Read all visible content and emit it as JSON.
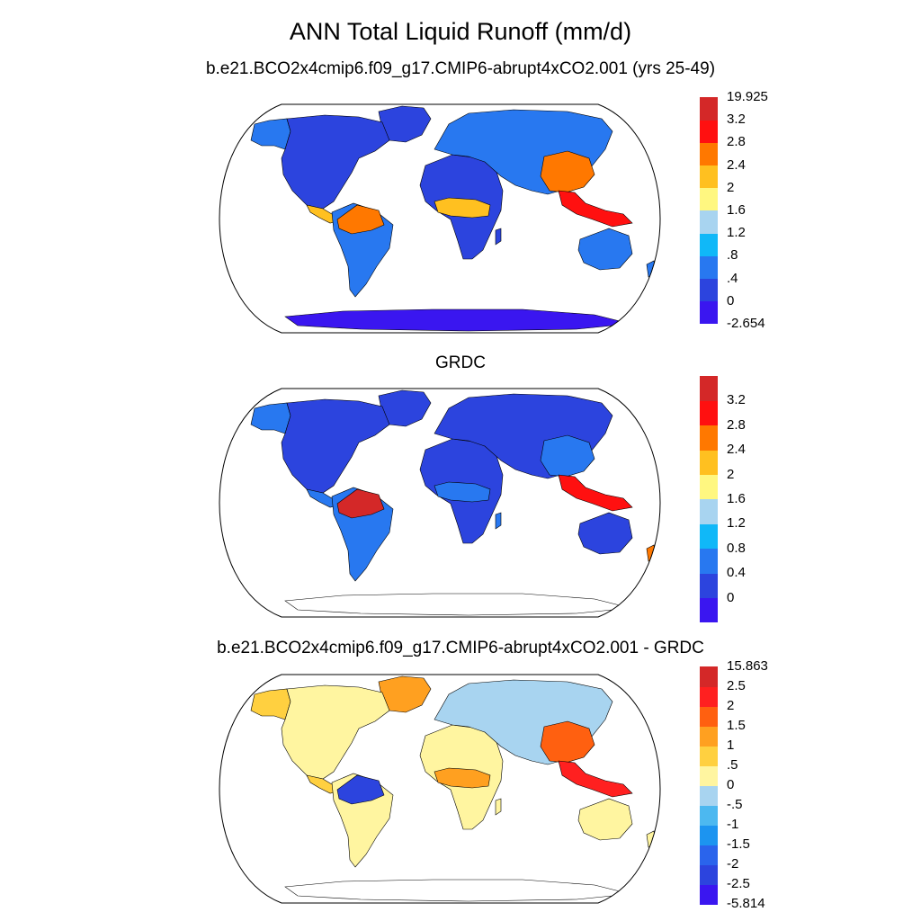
{
  "title": "ANN Total Liquid Runoff (mm/d)",
  "panels": [
    {
      "id": "model",
      "title": "b.e21.BCO2x4cmip6.f09_g17.CMIP6-abrupt4xCO2.001 (yrs 25-49)",
      "colorbar": {
        "colors": [
          "#3a16f0",
          "#2c44de",
          "#2878f0",
          "#10b8f8",
          "#a8d4f0",
          "#fff780",
          "#ffc020",
          "#ff7800",
          "#ff1010",
          "#d42828"
        ],
        "labels": [
          "-2.654",
          "0",
          ".4",
          ".8",
          "1.2",
          "1.6",
          "2",
          "2.4",
          "2.8",
          "3.2",
          "19.925"
        ]
      },
      "region_colors": {
        "north_america": "#2c44de",
        "alaska": "#2878f0",
        "greenland": "#2c44de",
        "central_america": "#ffc020",
        "south_america": "#2878f0",
        "amazon_band": "#ff7800",
        "africa": "#2c44de",
        "africa_band": "#ffc020",
        "europe_asia": "#2878f0",
        "east_asia": "#ff7800",
        "southeast_asia": "#ff1010",
        "australia": "#2878f0",
        "madagascar": "#2c44de",
        "antarctica": "#3a16f0",
        "nz": "#2878f0"
      }
    },
    {
      "id": "obs",
      "title": "GRDC",
      "colorbar": {
        "colors": [
          "#3a16f0",
          "#2c44de",
          "#2878f0",
          "#10b8f8",
          "#a8d4f0",
          "#fff780",
          "#ffc020",
          "#ff7800",
          "#ff1010",
          "#d42828"
        ],
        "labels": [
          "0",
          "0.4",
          "0.8",
          "1.2",
          "1.6",
          "2",
          "2.4",
          "2.8",
          "3.2"
        ]
      },
      "region_colors": {
        "north_america": "#2c44de",
        "alaska": "#2878f0",
        "greenland": "#2c44de",
        "central_america": "#2878f0",
        "south_america": "#2878f0",
        "amazon_band": "#d42828",
        "africa": "#2c44de",
        "africa_band": "#2878f0",
        "europe_asia": "#2c44de",
        "east_asia": "#2878f0",
        "southeast_asia": "#ff1010",
        "australia": "#2c44de",
        "madagascar": "#2878f0",
        "antarctica": "none",
        "nz": "#ff7800"
      }
    },
    {
      "id": "diff",
      "title": "b.e21.BCO2x4cmip6.f09_g17.CMIP6-abrupt4xCO2.001 - GRDC",
      "colorbar": {
        "colors": [
          "#3a16f0",
          "#2c44de",
          "#2a64ec",
          "#1c94f0",
          "#4cb8f0",
          "#a8d4f0",
          "#fff5a0",
          "#ffd040",
          "#ffa020",
          "#ff6010",
          "#ff2020",
          "#d42828"
        ],
        "labels": [
          "-5.814",
          "-2.5",
          "-2",
          "-1.5",
          "-1",
          "-.5",
          "0",
          ".5",
          "1",
          "1.5",
          "2",
          "2.5",
          "15.863"
        ]
      },
      "region_colors": {
        "north_america": "#fff5a0",
        "alaska": "#ffd040",
        "greenland": "#ffa020",
        "central_america": "#ffd040",
        "south_america": "#fff5a0",
        "amazon_band": "#2c44de",
        "africa": "#fff5a0",
        "africa_band": "#ffa020",
        "europe_asia": "#a8d4f0",
        "east_asia": "#ff6010",
        "southeast_asia": "#ff2020",
        "australia": "#fff5a0",
        "madagascar": "#fff5a0",
        "antarctica": "none",
        "nz": "#fff5a0"
      }
    }
  ]
}
